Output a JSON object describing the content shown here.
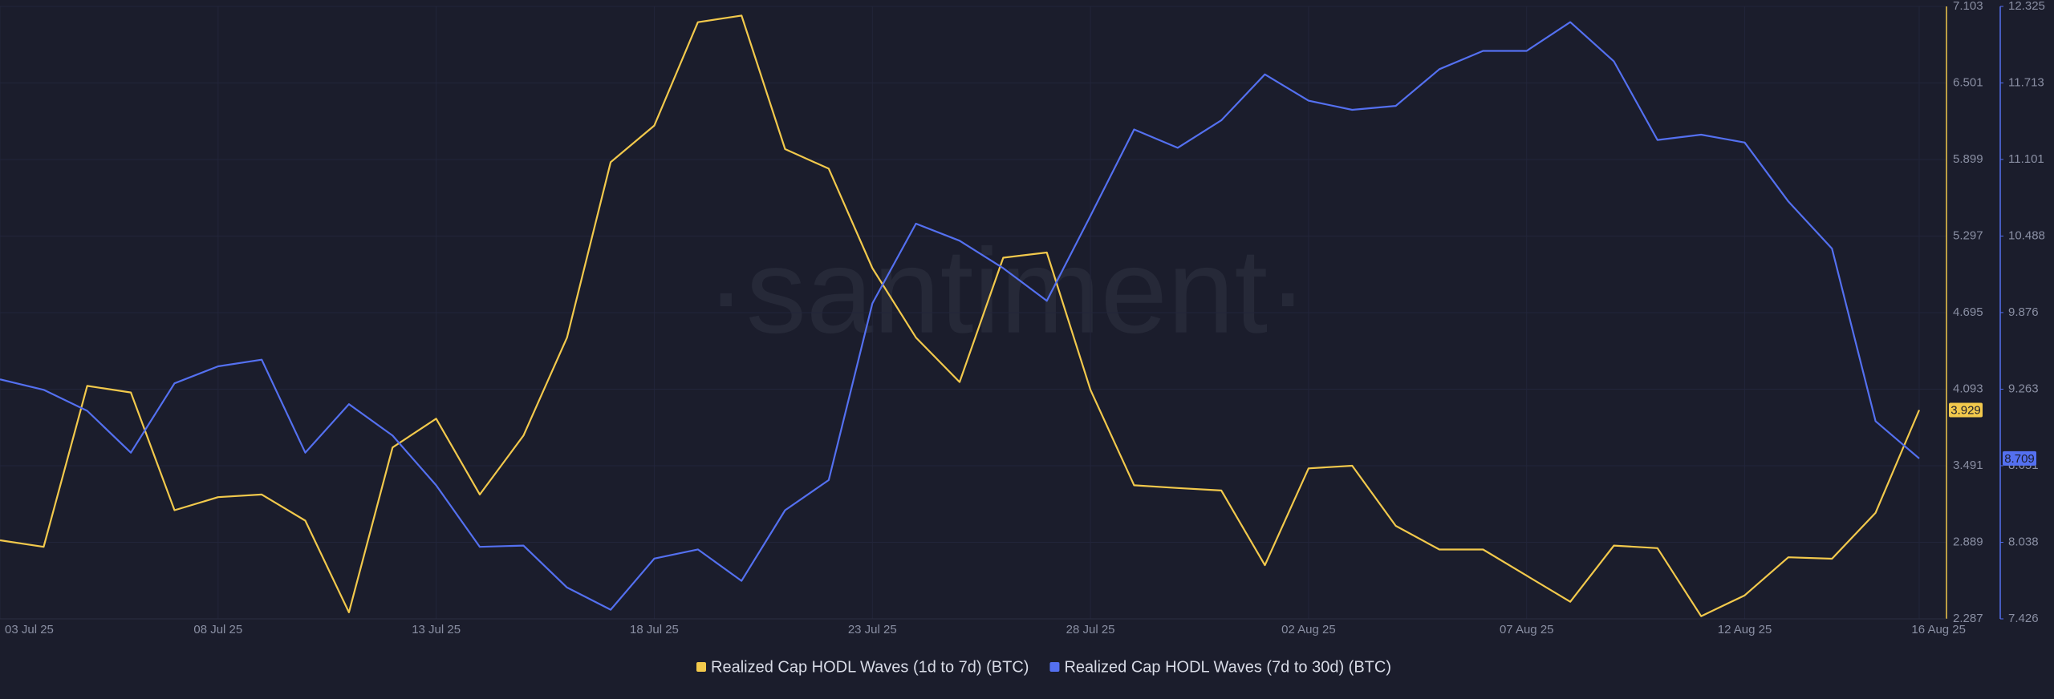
{
  "chart_data": {
    "type": "line",
    "watermark": "·santiment·",
    "x": [
      "03 Jul 25",
      null,
      null,
      null,
      null,
      "08 Jul 25",
      null,
      null,
      null,
      null,
      "13 Jul 25",
      null,
      null,
      null,
      null,
      "18 Jul 25",
      null,
      null,
      null,
      null,
      "23 Jul 25",
      null,
      null,
      null,
      null,
      "28 Jul 25",
      null,
      null,
      null,
      null,
      "02 Aug 25",
      null,
      null,
      null,
      null,
      "07 Aug 25",
      null,
      null,
      null,
      null,
      "12 Aug 25",
      null,
      null,
      null,
      "16 Aug 25"
    ],
    "series": [
      {
        "name": "Realized Cap HODL Waves (1d to 7d) (BTC)",
        "color": "#f2c94c",
        "axis": "y",
        "values": [
          2.905,
          2.853,
          4.119,
          4.067,
          3.141,
          3.244,
          3.265,
          3.059,
          2.338,
          3.635,
          3.861,
          3.265,
          3.728,
          4.499,
          5.878,
          6.166,
          6.979,
          7.031,
          5.981,
          5.827,
          5.045,
          4.499,
          4.149,
          5.127,
          5.168,
          4.088,
          3.337,
          3.316,
          3.296,
          2.709,
          3.47,
          3.491,
          3.018,
          2.832,
          2.832,
          2.627,
          2.421,
          2.863,
          2.843,
          2.308,
          2.472,
          2.771,
          2.76,
          3.121,
          3.929
        ]
      },
      {
        "name": "Realized Cap HODL Waves (7d to 30d) (BTC)",
        "color": "#5470f0",
        "axis": "y2",
        "values": [
          9.342,
          9.258,
          9.09,
          8.755,
          9.31,
          9.446,
          9.499,
          8.755,
          9.143,
          8.892,
          8.494,
          8.002,
          8.012,
          7.677,
          7.499,
          7.908,
          7.981,
          7.73,
          8.295,
          8.536,
          9.949,
          10.587,
          10.451,
          10.231,
          9.97,
          10.65,
          11.341,
          11.194,
          11.414,
          11.781,
          11.571,
          11.498,
          11.529,
          11.823,
          11.969,
          11.969,
          12.199,
          11.885,
          11.257,
          11.299,
          11.236,
          10.765,
          10.388,
          9.007,
          8.709
        ]
      }
    ],
    "ylim": [
      2.287,
      7.103
    ],
    "yticks": [
      2.287,
      2.889,
      3.491,
      4.093,
      4.695,
      5.297,
      5.899,
      6.501,
      7.103
    ],
    "y2lim": [
      7.426,
      12.325
    ],
    "y2ticks": [
      7.426,
      8.038,
      8.651,
      9.263,
      9.876,
      10.488,
      11.101,
      11.713,
      12.325
    ],
    "grid": true,
    "legend": "bottom"
  }
}
